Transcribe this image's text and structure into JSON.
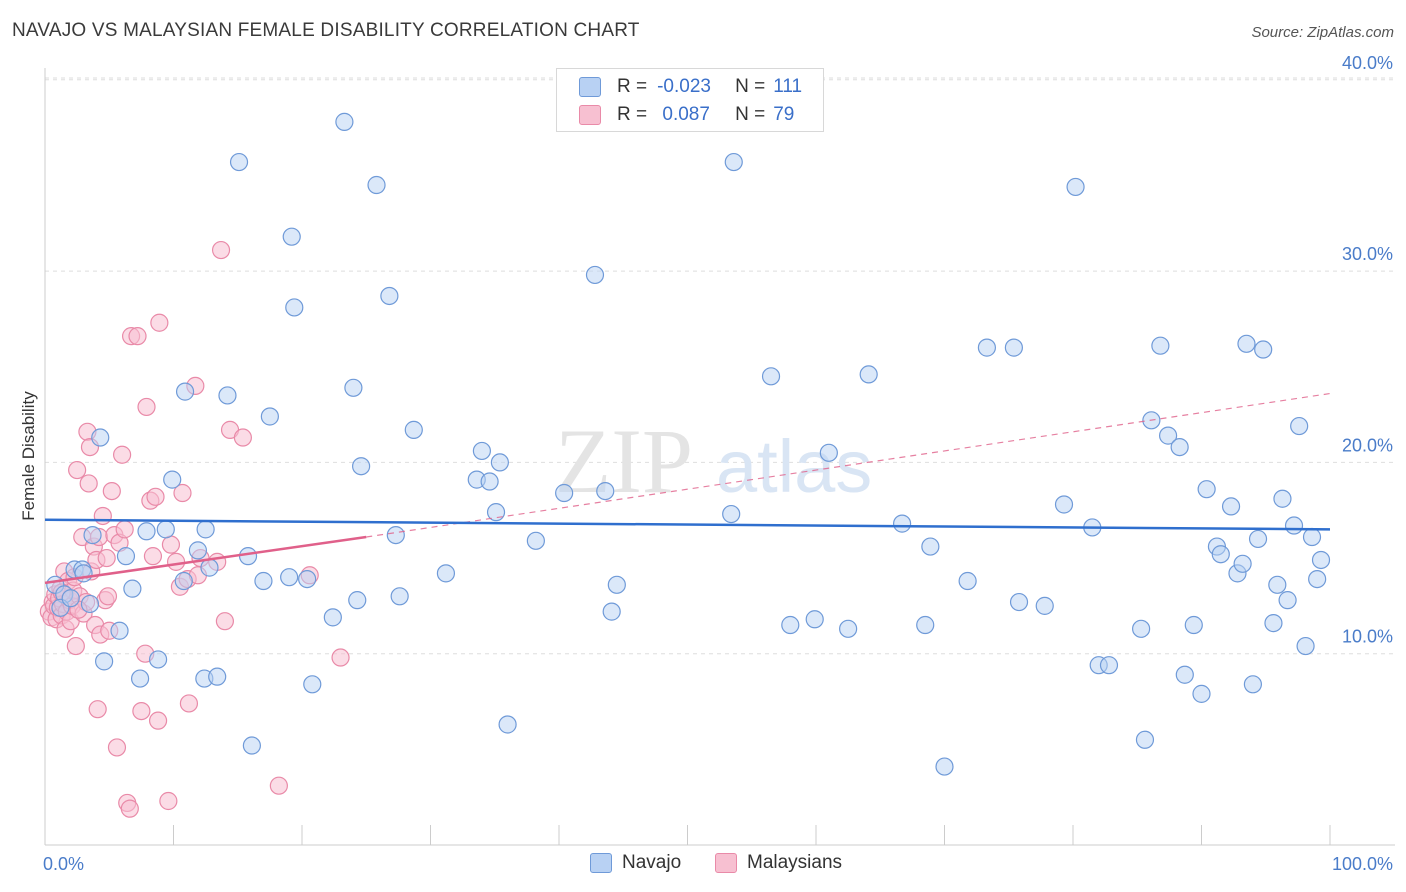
{
  "title": "NAVAJO VS MALAYSIAN FEMALE DISABILITY CORRELATION CHART",
  "source": "Source: ZipAtlas.com",
  "legend": {
    "series1": {
      "r_label": "R =",
      "r_value": "-0.023",
      "n_label": "N =",
      "n_value": "111"
    },
    "series2": {
      "r_label": "R =",
      "r_value": " 0.087",
      "n_label": "N =",
      "n_value": "79"
    }
  },
  "bottom_legend": {
    "series1": "Navajo",
    "series2": "Malaysians"
  },
  "colors": {
    "navajo_fill": "#b8d1f3",
    "navajo_stroke": "#6f9ad8",
    "navajo_line": "#2f6fce",
    "malay_fill": "#f7c0d1",
    "malay_stroke": "#e98aa8",
    "malay_line": "#e0608a",
    "axis_label": "#4a7cc9"
  },
  "chart_data": {
    "type": "scatter",
    "title": "NAVAJO VS MALAYSIAN FEMALE DISABILITY CORRELATION CHART",
    "xlabel": "",
    "ylabel": "Female Disability",
    "xlim": [
      0,
      100
    ],
    "ylim": [
      0,
      42
    ],
    "x_tick_labels": [
      "0.0%",
      "100.0%"
    ],
    "y_ticks": [
      10,
      20,
      30,
      40
    ],
    "y_tick_labels": [
      "10.0%",
      "20.0%",
      "30.0%",
      "40.0%"
    ],
    "watermark": "ZIPatlas",
    "series": [
      {
        "name": "Navajo",
        "trend": {
          "x": [
            0,
            100
          ],
          "y": [
            17.0,
            16.5
          ]
        },
        "points": [
          [
            0.8,
            13.6
          ],
          [
            1.5,
            13.1
          ],
          [
            2.3,
            14.4
          ],
          [
            2.9,
            14.4
          ],
          [
            3.7,
            16.2
          ],
          [
            4.3,
            21.3
          ],
          [
            4.6,
            9.6
          ],
          [
            5.8,
            11.2
          ],
          [
            6.3,
            15.1
          ],
          [
            6.8,
            13.4
          ],
          [
            7.4,
            8.7
          ],
          [
            7.9,
            16.4
          ],
          [
            8.8,
            9.7
          ],
          [
            9.4,
            16.5
          ],
          [
            9.9,
            19.1
          ],
          [
            10.8,
            13.8
          ],
          [
            10.9,
            23.7
          ],
          [
            11.9,
            15.4
          ],
          [
            12.4,
            8.7
          ],
          [
            12.5,
            16.5
          ],
          [
            12.8,
            14.5
          ],
          [
            13.4,
            8.8
          ],
          [
            14.2,
            23.5
          ],
          [
            15.1,
            35.7
          ],
          [
            15.8,
            15.1
          ],
          [
            16.1,
            5.2
          ],
          [
            17.0,
            13.8
          ],
          [
            17.5,
            22.4
          ],
          [
            19.0,
            14.0
          ],
          [
            19.2,
            31.8
          ],
          [
            19.4,
            28.1
          ],
          [
            20.4,
            13.9
          ],
          [
            20.8,
            8.4
          ],
          [
            22.4,
            11.9
          ],
          [
            23.3,
            37.8
          ],
          [
            24.0,
            23.9
          ],
          [
            24.3,
            12.8
          ],
          [
            24.6,
            19.8
          ],
          [
            25.8,
            34.5
          ],
          [
            26.8,
            28.7
          ],
          [
            27.3,
            16.2
          ],
          [
            27.6,
            13.0
          ],
          [
            28.7,
            21.7
          ],
          [
            31.2,
            14.2
          ],
          [
            33.6,
            19.1
          ],
          [
            34.0,
            20.6
          ],
          [
            34.6,
            19.0
          ],
          [
            35.1,
            17.4
          ],
          [
            35.4,
            20.0
          ],
          [
            36.0,
            6.3
          ],
          [
            38.2,
            15.9
          ],
          [
            40.4,
            18.4
          ],
          [
            42.8,
            29.8
          ],
          [
            43.6,
            18.5
          ],
          [
            44.1,
            12.2
          ],
          [
            44.5,
            13.6
          ],
          [
            53.4,
            17.3
          ],
          [
            53.6,
            35.7
          ],
          [
            56.5,
            24.5
          ],
          [
            58.0,
            11.5
          ],
          [
            59.9,
            11.8
          ],
          [
            61.0,
            20.5
          ],
          [
            62.5,
            11.3
          ],
          [
            64.1,
            24.6
          ],
          [
            66.7,
            16.8
          ],
          [
            68.5,
            11.5
          ],
          [
            68.9,
            15.6
          ],
          [
            70.0,
            4.1
          ],
          [
            71.8,
            13.8
          ],
          [
            73.3,
            26.0
          ],
          [
            75.4,
            26.0
          ],
          [
            75.8,
            12.7
          ],
          [
            77.8,
            12.5
          ],
          [
            79.3,
            17.8
          ],
          [
            80.2,
            34.4
          ],
          [
            81.5,
            16.6
          ],
          [
            82.0,
            9.4
          ],
          [
            82.8,
            9.4
          ],
          [
            85.3,
            11.3
          ],
          [
            85.6,
            5.5
          ],
          [
            86.1,
            22.2
          ],
          [
            86.8,
            26.1
          ],
          [
            87.4,
            21.4
          ],
          [
            88.3,
            20.8
          ],
          [
            88.7,
            8.9
          ],
          [
            89.4,
            11.5
          ],
          [
            90.0,
            7.9
          ],
          [
            90.4,
            18.6
          ],
          [
            91.2,
            15.6
          ],
          [
            91.5,
            15.2
          ],
          [
            92.3,
            17.7
          ],
          [
            92.8,
            14.2
          ],
          [
            93.2,
            14.7
          ],
          [
            93.5,
            26.2
          ],
          [
            94.0,
            8.4
          ],
          [
            94.4,
            16.0
          ],
          [
            94.8,
            25.9
          ],
          [
            95.6,
            11.6
          ],
          [
            95.9,
            13.6
          ],
          [
            96.3,
            18.1
          ],
          [
            96.7,
            12.8
          ],
          [
            97.2,
            16.7
          ],
          [
            97.6,
            21.9
          ],
          [
            98.1,
            10.4
          ],
          [
            98.6,
            16.1
          ],
          [
            99.0,
            13.9
          ],
          [
            99.3,
            14.9
          ],
          [
            1.2,
            12.4
          ],
          [
            2.0,
            12.9
          ],
          [
            3.0,
            14.2
          ],
          [
            3.5,
            12.6
          ]
        ]
      },
      {
        "name": "Malaysians",
        "trend": {
          "x": [
            0,
            25
          ],
          "y": [
            13.7,
            16.1
          ]
        },
        "trend_dashed": {
          "x": [
            25,
            100
          ],
          "y": [
            16.1,
            23.6
          ]
        },
        "points": [
          [
            0.3,
            12.2
          ],
          [
            0.5,
            11.9
          ],
          [
            0.6,
            12.7
          ],
          [
            0.7,
            12.5
          ],
          [
            0.8,
            13.1
          ],
          [
            0.9,
            11.8
          ],
          [
            1.0,
            12.4
          ],
          [
            1.1,
            12.9
          ],
          [
            1.2,
            13.4
          ],
          [
            1.3,
            12.0
          ],
          [
            1.4,
            12.6
          ],
          [
            1.5,
            14.3
          ],
          [
            1.6,
            11.3
          ],
          [
            1.7,
            12.2
          ],
          [
            1.8,
            13.8
          ],
          [
            1.9,
            12.8
          ],
          [
            2.0,
            11.7
          ],
          [
            2.1,
            12.5
          ],
          [
            2.2,
            13.3
          ],
          [
            2.3,
            14.0
          ],
          [
            2.4,
            10.4
          ],
          [
            2.5,
            19.6
          ],
          [
            2.7,
            13.0
          ],
          [
            2.9,
            16.1
          ],
          [
            3.0,
            12.1
          ],
          [
            3.2,
            12.7
          ],
          [
            3.3,
            21.6
          ],
          [
            3.4,
            18.9
          ],
          [
            3.5,
            20.8
          ],
          [
            3.6,
            14.3
          ],
          [
            3.8,
            15.6
          ],
          [
            3.9,
            11.5
          ],
          [
            4.0,
            14.9
          ],
          [
            4.1,
            7.1
          ],
          [
            4.2,
            16.1
          ],
          [
            4.3,
            11.0
          ],
          [
            4.5,
            17.2
          ],
          [
            4.7,
            12.8
          ],
          [
            4.8,
            15.0
          ],
          [
            4.9,
            13.0
          ],
          [
            5.0,
            11.2
          ],
          [
            5.2,
            18.5
          ],
          [
            5.4,
            16.2
          ],
          [
            5.6,
            5.1
          ],
          [
            5.8,
            15.8
          ],
          [
            6.0,
            20.4
          ],
          [
            6.2,
            16.5
          ],
          [
            6.4,
            2.2
          ],
          [
            6.6,
            1.9
          ],
          [
            6.7,
            26.6
          ],
          [
            7.2,
            26.6
          ],
          [
            7.5,
            7.0
          ],
          [
            7.8,
            10.0
          ],
          [
            7.9,
            22.9
          ],
          [
            8.2,
            18.0
          ],
          [
            8.4,
            15.1
          ],
          [
            8.6,
            18.2
          ],
          [
            8.8,
            6.5
          ],
          [
            8.9,
            27.3
          ],
          [
            9.6,
            2.3
          ],
          [
            9.8,
            15.7
          ],
          [
            10.2,
            14.8
          ],
          [
            10.5,
            13.5
          ],
          [
            10.7,
            18.4
          ],
          [
            11.1,
            13.9
          ],
          [
            11.2,
            7.4
          ],
          [
            11.7,
            24.0
          ],
          [
            11.9,
            14.1
          ],
          [
            12.1,
            15.0
          ],
          [
            13.4,
            14.8
          ],
          [
            13.7,
            31.1
          ],
          [
            14.0,
            11.7
          ],
          [
            14.4,
            21.7
          ],
          [
            15.4,
            21.3
          ],
          [
            18.2,
            3.1
          ],
          [
            20.6,
            14.1
          ],
          [
            23.0,
            9.8
          ],
          [
            1.3,
            13.2
          ],
          [
            2.6,
            12.3
          ]
        ]
      }
    ]
  }
}
